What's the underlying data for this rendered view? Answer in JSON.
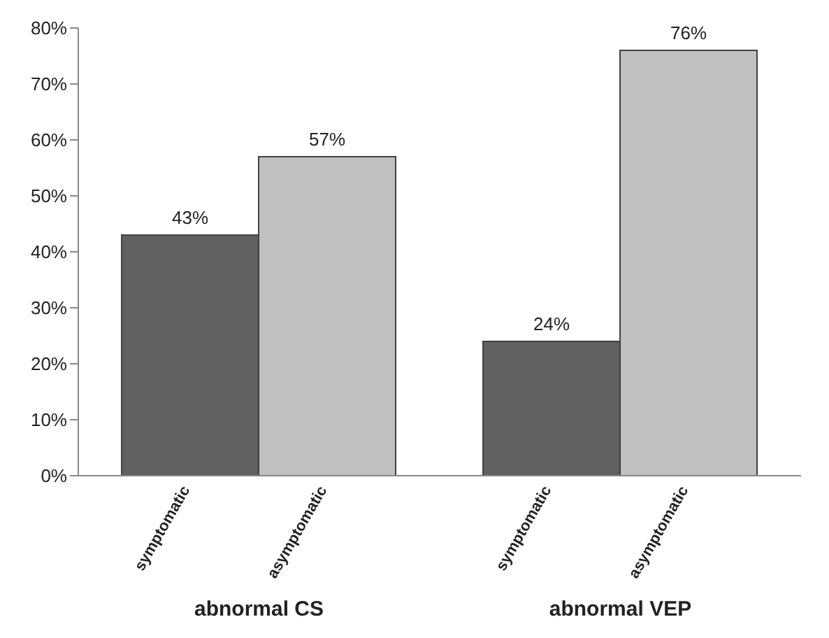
{
  "chart_data": {
    "type": "bar",
    "categories": [
      "abnormal CS",
      "abnormal VEP"
    ],
    "series": [
      {
        "name": "symptomatic",
        "color": "#606060",
        "values": [
          43,
          24
        ],
        "value_labels": [
          "43%",
          "24%"
        ]
      },
      {
        "name": "asymptomatic",
        "color": "#c0c0c0",
        "values": [
          57,
          76
        ],
        "value_labels": [
          "57%",
          "76%"
        ]
      }
    ],
    "ylim": [
      0,
      80
    ],
    "yticks": [
      {
        "value": 0,
        "label": "0%"
      },
      {
        "value": 10,
        "label": "10%"
      },
      {
        "value": 20,
        "label": "20%"
      },
      {
        "value": 30,
        "label": "30%"
      },
      {
        "value": 40,
        "label": "40%"
      },
      {
        "value": 50,
        "label": "50%"
      },
      {
        "value": 60,
        "label": "60%"
      },
      {
        "value": 70,
        "label": "70%"
      },
      {
        "value": 80,
        "label": "80%"
      }
    ],
    "grid": false,
    "legend": false
  }
}
